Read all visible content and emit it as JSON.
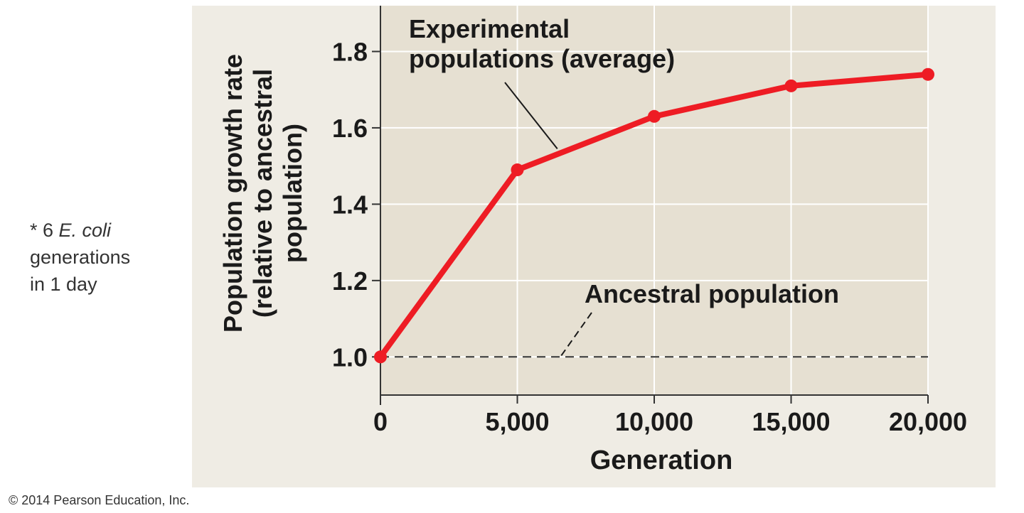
{
  "side_note": {
    "line1_prefix": "* 6 ",
    "line1_italic": "E. coli",
    "line2": "generations",
    "line3": "in 1 day"
  },
  "copyright": "© 2014 Pearson Education, Inc.",
  "chart_data": {
    "type": "line",
    "xlabel": "Generation",
    "ylabel_lines": [
      "Population growth rate",
      "(relative to ancestral",
      "population)"
    ],
    "x": [
      0,
      5000,
      10000,
      15000,
      20000
    ],
    "x_tick_labels": [
      "0",
      "5,000",
      "10,000",
      "15,000",
      "20,000"
    ],
    "y_ticks": [
      1.0,
      1.2,
      1.4,
      1.6,
      1.8
    ],
    "y_tick_labels": [
      "1.0",
      "1.2",
      "1.4",
      "1.6",
      "1.8"
    ],
    "xlim": [
      0,
      20000
    ],
    "ylim": [
      0.9,
      1.92
    ],
    "grid": true,
    "series": [
      {
        "name": "Experimental populations (average)",
        "label_lines": [
          "Experimental",
          "populations (average)"
        ],
        "values": [
          1.0,
          1.49,
          1.63,
          1.71,
          1.74
        ],
        "color": "#ee1c24"
      },
      {
        "name": "Ancestral population",
        "label_lines": [
          "Ancestral population"
        ],
        "values": [
          1.0,
          1.0,
          1.0,
          1.0,
          1.0
        ],
        "color": "#333333",
        "style": "dashed"
      }
    ],
    "colors": {
      "plot_bg": "#e6e0d2",
      "grid": "#ffffff",
      "axis": "#333333",
      "text": "#1a1a1a"
    }
  }
}
